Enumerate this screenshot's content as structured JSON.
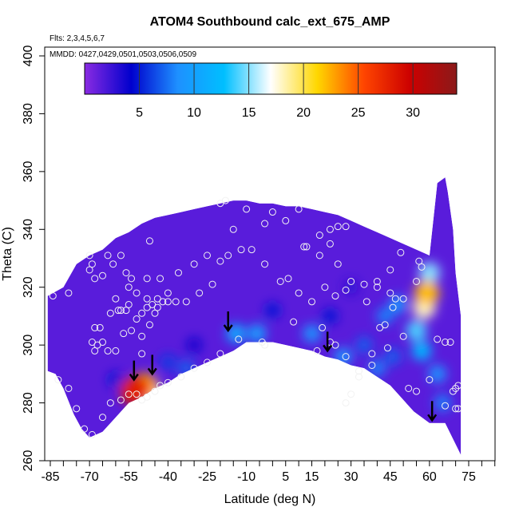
{
  "chart_data": {
    "type": "heatmap",
    "title": "ATOM4 Southbound calc_ext_675_AMP",
    "subtitle_flights": "Flts: 2,3,4,5,6,7",
    "subtitle_dates": "MMDD: 0427,0429,0501,0503,0506,0509",
    "xlabel": "Latitude (deg N)",
    "ylabel": "Theta (C)",
    "xlim": [
      -87,
      80
    ],
    "ylim": [
      260,
      405
    ],
    "x_ticks": [
      -85,
      -70,
      -55,
      -40,
      -25,
      -10,
      5,
      15,
      30,
      45,
      60,
      75
    ],
    "x_tick_labels": [
      "-85",
      "-70",
      "-55",
      "-40",
      "-25",
      "-10",
      "5",
      "15",
      "30",
      "45",
      "60",
      "75"
    ],
    "y_ticks": [
      260,
      280,
      300,
      320,
      340,
      360,
      380,
      400
    ],
    "y_tick_labels": [
      "260",
      "280",
      "300",
      "320",
      "340",
      "360",
      "380",
      "400"
    ],
    "colorbar": {
      "range": [
        0,
        34
      ],
      "ticks": [
        5,
        10,
        15,
        20,
        25,
        30
      ],
      "tick_labels": [
        "5",
        "10",
        "15",
        "20",
        "25",
        "30"
      ],
      "colors": [
        "#8a2be2",
        "#0000cd",
        "#1e90ff",
        "#00bfff",
        "#ffffff",
        "#ffd700",
        "#ff4500",
        "#cc0000",
        "#8b1a1a"
      ]
    },
    "upper_boundary": [
      [
        -86,
        317
      ],
      [
        -80,
        320
      ],
      [
        -75,
        328
      ],
      [
        -70,
        331
      ],
      [
        -65,
        333
      ],
      [
        -60,
        337
      ],
      [
        -55,
        339
      ],
      [
        -50,
        342
      ],
      [
        -45,
        344
      ],
      [
        -40,
        345
      ],
      [
        -35,
        346
      ],
      [
        -30,
        347
      ],
      [
        -25,
        348
      ],
      [
        -20,
        349
      ],
      [
        -15,
        350
      ],
      [
        -10,
        350
      ],
      [
        -5,
        349
      ],
      [
        0,
        349
      ],
      [
        5,
        348
      ],
      [
        10,
        348
      ],
      [
        15,
        347
      ],
      [
        20,
        346
      ],
      [
        25,
        345
      ],
      [
        30,
        343
      ],
      [
        35,
        341
      ],
      [
        40,
        339
      ],
      [
        45,
        337
      ],
      [
        50,
        335
      ],
      [
        55,
        333
      ],
      [
        60,
        331
      ],
      [
        63,
        356
      ],
      [
        66,
        358
      ],
      [
        67,
        353
      ],
      [
        69,
        340
      ],
      [
        70,
        325
      ],
      [
        72,
        310
      ]
    ],
    "lower_boundary": [
      [
        72,
        262
      ],
      [
        66,
        273
      ],
      [
        60,
        273
      ],
      [
        54,
        277
      ],
      [
        49,
        282
      ],
      [
        45,
        286
      ],
      [
        40,
        289
      ],
      [
        35,
        292
      ],
      [
        30,
        293
      ],
      [
        25,
        295
      ],
      [
        20,
        296
      ],
      [
        15,
        298
      ],
      [
        10,
        299
      ],
      [
        5,
        300
      ],
      [
        0,
        301
      ],
      [
        -5,
        301
      ],
      [
        -10,
        301
      ],
      [
        -15,
        298
      ],
      [
        -20,
        296
      ],
      [
        -25,
        294
      ],
      [
        -30,
        292
      ],
      [
        -35,
        290
      ],
      [
        -40,
        287
      ],
      [
        -45,
        285
      ],
      [
        -50,
        282
      ],
      [
        -55,
        280
      ],
      [
        -60,
        275
      ],
      [
        -65,
        270
      ],
      [
        -70,
        268
      ],
      [
        -73,
        271
      ],
      [
        -76,
        276
      ],
      [
        -80,
        285
      ],
      [
        -83,
        290
      ],
      [
        -86,
        291
      ]
    ],
    "value_field": [
      {
        "x": -53,
        "y": 284,
        "v": 28
      },
      {
        "x": -51,
        "y": 285,
        "v": 25
      },
      {
        "x": -49,
        "y": 286,
        "v": 22
      },
      {
        "x": -47,
        "y": 284,
        "v": 18
      },
      {
        "x": 59,
        "y": 318,
        "v": 22
      },
      {
        "x": 58,
        "y": 313,
        "v": 18
      },
      {
        "x": 60,
        "y": 325,
        "v": 15
      },
      {
        "x": 55,
        "y": 305,
        "v": 14
      },
      {
        "x": 57,
        "y": 298,
        "v": 12
      },
      {
        "x": 63,
        "y": 290,
        "v": 9
      },
      {
        "x": 65,
        "y": 280,
        "v": 8
      },
      {
        "x": -14,
        "y": 304,
        "v": 11
      },
      {
        "x": -6,
        "y": 304,
        "v": 10
      },
      {
        "x": 15,
        "y": 304,
        "v": 9
      },
      {
        "x": 27,
        "y": 296,
        "v": 9
      },
      {
        "x": 35,
        "y": 300,
        "v": 7
      },
      {
        "x": 43,
        "y": 310,
        "v": 8
      },
      {
        "x": 48,
        "y": 314,
        "v": 9
      },
      {
        "x": 40,
        "y": 292,
        "v": 8
      },
      {
        "x": 46,
        "y": 296,
        "v": 7
      },
      {
        "x": -40,
        "y": 294,
        "v": 6
      },
      {
        "x": -33,
        "y": 292,
        "v": 7
      },
      {
        "x": -60,
        "y": 288,
        "v": 5
      },
      {
        "x": -30,
        "y": 300,
        "v": 4
      },
      {
        "x": 0,
        "y": 312,
        "v": 5
      },
      {
        "x": 22,
        "y": 310,
        "v": 5
      },
      {
        "x": 30,
        "y": 320,
        "v": 3
      }
    ],
    "sample_points": [
      [
        -84,
        317
      ],
      [
        -78,
        318
      ],
      [
        -70,
        331
      ],
      [
        -69,
        328
      ],
      [
        -70,
        326
      ],
      [
        -68,
        323
      ],
      [
        -65,
        324
      ],
      [
        -63,
        331
      ],
      [
        -61,
        328
      ],
      [
        -58,
        331
      ],
      [
        -56,
        325
      ],
      [
        -55,
        320
      ],
      [
        -54,
        323
      ],
      [
        -60,
        316
      ],
      [
        -58,
        312
      ],
      [
        -55,
        314
      ],
      [
        -52,
        318
      ],
      [
        -50,
        311
      ],
      [
        -48,
        313
      ],
      [
        -46,
        314
      ],
      [
        -44,
        313
      ],
      [
        -42,
        315
      ],
      [
        -40,
        318
      ],
      [
        -48,
        323
      ],
      [
        -43,
        323
      ],
      [
        -47,
        336
      ],
      [
        -36,
        325
      ],
      [
        -30,
        328
      ],
      [
        -25,
        331
      ],
      [
        -20,
        329
      ],
      [
        -17,
        331
      ],
      [
        -23,
        321
      ],
      [
        -28,
        318
      ],
      [
        -33,
        315
      ],
      [
        -37,
        315
      ],
      [
        -40,
        315
      ],
      [
        -44,
        316
      ],
      [
        -48,
        316
      ],
      [
        -52,
        309
      ],
      [
        -56,
        312
      ],
      [
        -59,
        312
      ],
      [
        -62,
        311
      ],
      [
        -66,
        306
      ],
      [
        -68,
        306
      ],
      [
        -67,
        300
      ],
      [
        -69,
        301
      ],
      [
        -68,
        298
      ],
      [
        -65,
        301
      ],
      [
        -63,
        298
      ],
      [
        -60,
        298
      ],
      [
        -57,
        304
      ],
      [
        -54,
        305
      ],
      [
        -50,
        303
      ],
      [
        -50,
        297
      ],
      [
        -47,
        307
      ],
      [
        -45,
        311
      ],
      [
        -12,
        333
      ],
      [
        -10,
        347
      ],
      [
        -3,
        342
      ],
      [
        0,
        346
      ],
      [
        5,
        343
      ],
      [
        10,
        347
      ],
      [
        13,
        334
      ],
      [
        18,
        331
      ],
      [
        22,
        335
      ],
      [
        25,
        328
      ],
      [
        30,
        322
      ],
      [
        35,
        321
      ],
      [
        40,
        320
      ],
      [
        45,
        318
      ],
      [
        50,
        316
      ],
      [
        55,
        322
      ],
      [
        57,
        327
      ],
      [
        56,
        329
      ],
      [
        49,
        332
      ],
      [
        45,
        326
      ],
      [
        40,
        322
      ],
      [
        36,
        315
      ],
      [
        28,
        319
      ],
      [
        24,
        317
      ],
      [
        20,
        320
      ],
      [
        15,
        315
      ],
      [
        10,
        318
      ],
      [
        3,
        322
      ],
      [
        -3,
        328
      ],
      [
        -8,
        333
      ],
      [
        -15,
        340
      ],
      [
        -20,
        349
      ],
      [
        -18,
        350
      ],
      [
        28,
        341
      ],
      [
        25,
        341
      ],
      [
        22,
        340
      ],
      [
        18,
        338
      ],
      [
        12,
        334
      ],
      [
        6,
        323
      ],
      [
        8,
        308
      ],
      [
        19,
        306
      ],
      [
        17,
        298
      ],
      [
        22,
        301
      ],
      [
        24,
        300
      ],
      [
        28,
        296
      ],
      [
        33,
        291
      ],
      [
        38,
        297
      ],
      [
        41,
        306
      ],
      [
        43,
        307
      ],
      [
        46,
        313
      ],
      [
        47,
        316
      ],
      [
        50,
        303
      ],
      [
        44,
        299
      ],
      [
        38,
        293
      ],
      [
        33,
        289
      ],
      [
        30,
        283
      ],
      [
        28,
        280
      ],
      [
        -4,
        301
      ],
      [
        -3,
        300
      ],
      [
        -13,
        302
      ],
      [
        -20,
        297
      ],
      [
        -25,
        294
      ],
      [
        -30,
        292
      ],
      [
        -35,
        289
      ],
      [
        -40,
        287
      ],
      [
        -43,
        286
      ],
      [
        -45,
        284
      ],
      [
        -48,
        282
      ],
      [
        -50,
        281
      ],
      [
        -52,
        283
      ],
      [
        -55,
        283
      ],
      [
        -58,
        281
      ],
      [
        -62,
        280
      ],
      [
        -65,
        275
      ],
      [
        -69,
        269
      ],
      [
        -72,
        271
      ],
      [
        -75,
        278
      ],
      [
        -82,
        288
      ],
      [
        -78,
        285
      ],
      [
        52,
        285
      ],
      [
        55,
        284
      ],
      [
        60,
        288
      ],
      [
        63,
        302
      ],
      [
        66,
        301
      ],
      [
        68,
        301
      ],
      [
        71,
        286
      ],
      [
        70,
        285
      ],
      [
        69,
        284
      ],
      [
        66,
        279
      ],
      [
        70,
        278
      ],
      [
        71,
        278
      ]
    ],
    "arrows": [
      [
        -53,
        288
      ],
      [
        -46,
        290
      ],
      [
        -17,
        305
      ],
      [
        21,
        298
      ],
      [
        61,
        274
      ]
    ]
  }
}
